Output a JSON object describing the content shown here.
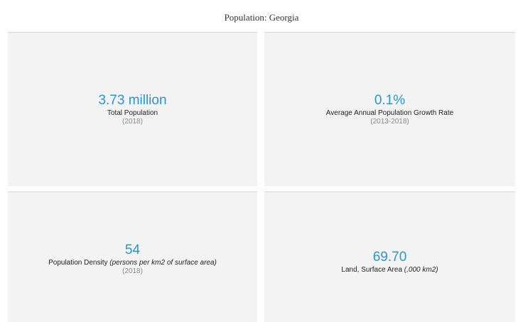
{
  "page": {
    "title": "Population: Georgia"
  },
  "cards": [
    {
      "value": "3.73 million",
      "label": "Total Population",
      "label_note": "",
      "period": "(2018)"
    },
    {
      "value": "0.1%",
      "label": "Average Annual Population Growth Rate",
      "label_note": "",
      "period": "(2013-2018)"
    },
    {
      "value": "54",
      "label": "Population Density ",
      "label_note": "(persons per km2 of surface area)",
      "period": "(2018)"
    },
    {
      "value": "69.70",
      "label": "Land, Surface Area ",
      "label_note": "(,000  km2)",
      "period": ""
    }
  ],
  "colors": {
    "value": "#2a96c8",
    "card_background": "#f3f3f3"
  }
}
